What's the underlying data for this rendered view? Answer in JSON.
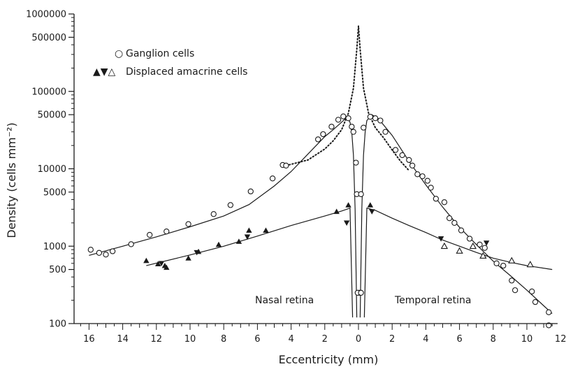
{
  "chart_data": {
    "type": "scatter",
    "title": "",
    "xlabel": "Eccentricity (mm)",
    "ylabel": "Density (cells mm⁻²)",
    "yscale": "log",
    "xlim": [
      16.7,
      12.8
    ],
    "ylim": [
      100,
      1000000
    ],
    "x_axis_note": "Distance from the fovea; nasal retina on the left, temporal retina on the right",
    "x_ticks": [
      {
        "v": -16,
        "label": "16"
      },
      {
        "v": -14,
        "label": "14"
      },
      {
        "v": -12,
        "label": "12"
      },
      {
        "v": -10,
        "label": "10"
      },
      {
        "v": -8,
        "label": "8"
      },
      {
        "v": -6,
        "label": "6"
      },
      {
        "v": -4,
        "label": "4"
      },
      {
        "v": -2,
        "label": "2"
      },
      {
        "v": 0,
        "label": "0"
      },
      {
        "v": 2,
        "label": "2"
      },
      {
        "v": 4,
        "label": "4"
      },
      {
        "v": 6,
        "label": "6"
      },
      {
        "v": 8,
        "label": "8"
      },
      {
        "v": 10,
        "label": "10"
      },
      {
        "v": 12,
        "label": "12"
      }
    ],
    "y_ticks": [
      {
        "v": 100,
        "label": "100"
      },
      {
        "v": 500,
        "label": "500"
      },
      {
        "v": 1000,
        "label": "1000"
      },
      {
        "v": 5000,
        "label": "5000"
      },
      {
        "v": 10000,
        "label": "10000"
      },
      {
        "v": 50000,
        "label": "50000"
      },
      {
        "v": 100000,
        "label": "100000"
      },
      {
        "v": 500000,
        "label": "500000"
      },
      {
        "v": 1000000,
        "label": "1000000"
      }
    ],
    "legend": {
      "position": "top-left",
      "entries": [
        {
          "symbols": "○",
          "label": "Ganglion cells"
        },
        {
          "symbols": "▲▼△",
          "label": "Displaced amacrine cells"
        }
      ]
    },
    "region_labels": [
      {
        "text": "Nasal retina",
        "x": -7.4,
        "y": 140
      },
      {
        "text": "Temporal retina",
        "x": 5.2,
        "y": 140
      }
    ],
    "series": [
      {
        "name": "Ganglion cells",
        "marker": "circle-open",
        "points": [
          [
            -15.9,
            900
          ],
          [
            -15.4,
            820
          ],
          [
            -15.0,
            780
          ],
          [
            -14.6,
            860
          ],
          [
            -13.5,
            1060
          ],
          [
            -12.4,
            1400
          ],
          [
            -11.4,
            1550
          ],
          [
            -10.1,
            1930
          ],
          [
            -8.6,
            2600
          ],
          [
            -7.6,
            3400
          ],
          [
            -6.4,
            5100
          ],
          [
            -5.1,
            7500
          ],
          [
            -4.5,
            11200
          ],
          [
            -4.3,
            11000
          ],
          [
            -2.4,
            24000
          ],
          [
            -2.1,
            28000
          ],
          [
            -1.6,
            35000
          ],
          [
            -1.2,
            43000
          ],
          [
            -0.9,
            47500
          ],
          [
            -0.6,
            45000
          ],
          [
            -0.4,
            35000
          ],
          [
            -0.3,
            30000
          ],
          [
            -0.15,
            12000
          ],
          [
            -0.1,
            4700
          ],
          [
            0.05,
            250
          ],
          [
            -0.05,
            250
          ],
          [
            0.15,
            250
          ],
          [
            0.15,
            4700
          ],
          [
            0.3,
            34000
          ],
          [
            0.7,
            47000
          ],
          [
            1.0,
            45000
          ],
          [
            1.3,
            42000
          ],
          [
            1.6,
            30000
          ],
          [
            2.2,
            17500
          ],
          [
            2.6,
            15000
          ],
          [
            3.0,
            13000
          ],
          [
            3.2,
            11000
          ],
          [
            3.5,
            8500
          ],
          [
            3.8,
            8000
          ],
          [
            4.1,
            7000
          ],
          [
            4.3,
            5700
          ],
          [
            4.6,
            4100
          ],
          [
            5.1,
            3700
          ],
          [
            5.4,
            2300
          ],
          [
            5.7,
            2000
          ],
          [
            6.1,
            1600
          ],
          [
            6.6,
            1250
          ],
          [
            7.2,
            1050
          ],
          [
            7.5,
            950
          ],
          [
            8.2,
            600
          ],
          [
            8.6,
            560
          ],
          [
            9.1,
            360
          ],
          [
            9.3,
            270
          ],
          [
            10.3,
            260
          ],
          [
            10.5,
            190
          ],
          [
            11.3,
            140
          ],
          [
            11.3,
            95
          ]
        ]
      },
      {
        "name": "Displaced amacrine cells",
        "marker": "triangle-up-filled",
        "points": [
          [
            -12.6,
            650
          ],
          [
            -11.9,
            590
          ],
          [
            -11.5,
            560
          ],
          [
            -11.4,
            530
          ],
          [
            -10.1,
            700
          ],
          [
            -9.5,
            850
          ],
          [
            -8.3,
            1050
          ],
          [
            -7.1,
            1150
          ],
          [
            -6.5,
            1600
          ],
          [
            -5.5,
            1600
          ],
          [
            -1.3,
            2800
          ],
          [
            -0.6,
            3400
          ],
          [
            0.7,
            3400
          ]
        ]
      },
      {
        "name": "",
        "marker": "triangle-down-filled",
        "points": [
          [
            -11.7,
            600
          ],
          [
            -9.6,
            830
          ],
          [
            -6.6,
            1320
          ],
          [
            -0.7,
            2000
          ],
          [
            0.8,
            2800
          ],
          [
            4.9,
            1250
          ],
          [
            7.6,
            1100
          ]
        ]
      },
      {
        "name": "",
        "marker": "triangle-up-open",
        "points": [
          [
            5.1,
            1000
          ],
          [
            6.0,
            870
          ],
          [
            6.8,
            1000
          ],
          [
            7.4,
            750
          ],
          [
            9.1,
            650
          ],
          [
            10.2,
            580
          ]
        ]
      }
    ],
    "fitted_curves": [
      {
        "style": "solid",
        "points": [
          [
            -16.0,
            760
          ],
          [
            -14.0,
            1000
          ],
          [
            -12.0,
            1320
          ],
          [
            -10.0,
            1780
          ],
          [
            -8.0,
            2450
          ],
          [
            -6.5,
            3450
          ],
          [
            -5.0,
            6000
          ],
          [
            -4.0,
            9200
          ],
          [
            -3.0,
            15500
          ],
          [
            -2.0,
            26000
          ],
          [
            -1.5,
            32000
          ],
          [
            -1.0,
            40000
          ],
          [
            -0.7,
            46000
          ],
          [
            -0.5,
            40000
          ],
          [
            -0.4,
            30000
          ],
          [
            -0.3,
            15000
          ],
          [
            -0.2,
            3000
          ],
          [
            -0.1,
            120
          ]
        ]
      },
      {
        "style": "solid",
        "points": [
          [
            0.1,
            120
          ],
          [
            0.2,
            3000
          ],
          [
            0.3,
            15000
          ],
          [
            0.4,
            30000
          ],
          [
            0.5,
            42000
          ],
          [
            0.8,
            50000
          ],
          [
            1.2,
            44000
          ],
          [
            2.0,
            27000
          ],
          [
            3.0,
            12500
          ],
          [
            4.0,
            6200
          ],
          [
            5.0,
            3200
          ],
          [
            6.0,
            1750
          ],
          [
            7.0,
            1050
          ],
          [
            8.0,
            640
          ],
          [
            9.0,
            420
          ],
          [
            10.0,
            270
          ],
          [
            11.0,
            170
          ],
          [
            11.5,
            135
          ]
        ]
      },
      {
        "style": "dotted",
        "points": [
          [
            -4.3,
            11000
          ],
          [
            -3.0,
            13000
          ],
          [
            -2.0,
            18000
          ],
          [
            -1.5,
            23000
          ],
          [
            -1.0,
            32000
          ],
          [
            -0.6,
            52000
          ],
          [
            -0.3,
            110000
          ],
          [
            -0.1,
            350000
          ],
          [
            0.0,
            700000
          ],
          [
            0.1,
            350000
          ],
          [
            0.3,
            110000
          ],
          [
            0.6,
            52000
          ],
          [
            1.0,
            34000
          ],
          [
            1.5,
            25000
          ],
          [
            2.0,
            17500
          ],
          [
            2.5,
            12500
          ],
          [
            3.0,
            9500
          ]
        ]
      },
      {
        "style": "solid",
        "points": [
          [
            -12.6,
            560
          ],
          [
            -10.0,
            770
          ],
          [
            -8.0,
            1000
          ],
          [
            -6.0,
            1350
          ],
          [
            -4.0,
            1850
          ],
          [
            -2.0,
            2450
          ],
          [
            -1.0,
            2850
          ],
          [
            -0.5,
            3100
          ],
          [
            -0.35,
            120
          ]
        ]
      },
      {
        "style": "solid",
        "points": [
          [
            0.35,
            120
          ],
          [
            0.5,
            3100
          ],
          [
            1.0,
            2900
          ],
          [
            2.0,
            2300
          ],
          [
            3.0,
            1850
          ],
          [
            4.0,
            1500
          ],
          [
            5.0,
            1200
          ],
          [
            6.0,
            1000
          ],
          [
            7.0,
            830
          ],
          [
            8.0,
            700
          ],
          [
            9.0,
            620
          ],
          [
            10.0,
            560
          ],
          [
            11.5,
            500
          ]
        ]
      }
    ]
  }
}
